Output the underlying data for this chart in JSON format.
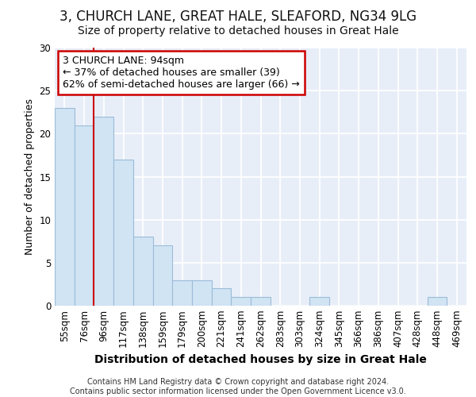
{
  "title1": "3, CHURCH LANE, GREAT HALE, SLEAFORD, NG34 9LG",
  "title2": "Size of property relative to detached houses in Great Hale",
  "xlabel": "Distribution of detached houses by size in Great Hale",
  "ylabel": "Number of detached properties",
  "categories": [
    "55sqm",
    "76sqm",
    "96sqm",
    "117sqm",
    "138sqm",
    "159sqm",
    "179sqm",
    "200sqm",
    "221sqm",
    "241sqm",
    "262sqm",
    "283sqm",
    "303sqm",
    "324sqm",
    "345sqm",
    "366sqm",
    "386sqm",
    "407sqm",
    "428sqm",
    "448sqm",
    "469sqm"
  ],
  "values": [
    23,
    21,
    22,
    17,
    8,
    7,
    3,
    3,
    2,
    1,
    1,
    0,
    0,
    1,
    0,
    0,
    0,
    0,
    0,
    1,
    0
  ],
  "bar_color": "#d0e4f4",
  "bar_edge_color": "#9bbcd8",
  "vline_color": "#cc0000",
  "annotation_text": "3 CHURCH LANE: 94sqm\n← 37% of detached houses are smaller (39)\n62% of semi-detached houses are larger (66) →",
  "annotation_box_color": "#ffffff",
  "annotation_box_edge_color": "#cc0000",
  "ylim": [
    0,
    30
  ],
  "yticks": [
    0,
    5,
    10,
    15,
    20,
    25,
    30
  ],
  "bg_color": "#ffffff",
  "plot_bg_color": "#e8eef8",
  "footer1": "Contains HM Land Registry data © Crown copyright and database right 2024.",
  "footer2": "Contains public sector information licensed under the Open Government Licence v3.0.",
  "grid_color": "#ffffff",
  "title1_fontsize": 12,
  "title2_fontsize": 10,
  "xlabel_fontsize": 10,
  "ylabel_fontsize": 9,
  "tick_fontsize": 8.5,
  "annotation_fontsize": 9
}
